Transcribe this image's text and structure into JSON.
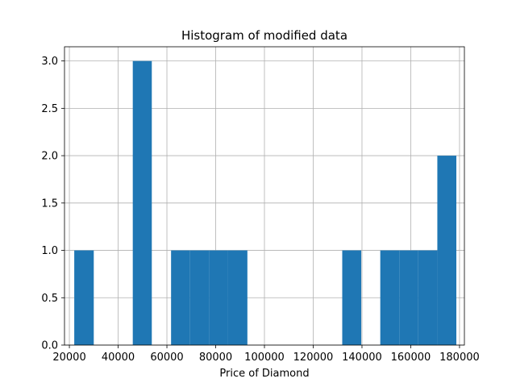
{
  "chart_data": {
    "type": "bar",
    "subtype": "histogram",
    "title": "Histogram of modified data",
    "xlabel": "Price of Diamond",
    "ylabel": "",
    "xlim": [
      18000,
      182000
    ],
    "ylim": [
      0,
      3.15
    ],
    "grid": true,
    "bar_color": "#1f77b4",
    "x_ticks": [
      20000,
      40000,
      60000,
      80000,
      100000,
      120000,
      140000,
      160000,
      180000
    ],
    "x_tick_labels": [
      "20000",
      "40000",
      "60000",
      "80000",
      "100000",
      "120000",
      "140000",
      "160000",
      "180000"
    ],
    "y_ticks": [
      0,
      0.5,
      1.0,
      1.5,
      2.0,
      2.5,
      3.0
    ],
    "y_tick_labels": [
      "0.0",
      "0.5",
      "1.0",
      "1.5",
      "2.0",
      "2.5",
      "3.0"
    ],
    "bins": [
      {
        "start": 22000,
        "end": 30000,
        "count": 1
      },
      {
        "start": 46000,
        "end": 53800,
        "count": 3
      },
      {
        "start": 61700,
        "end": 69500,
        "count": 1
      },
      {
        "start": 69500,
        "end": 77300,
        "count": 1
      },
      {
        "start": 77300,
        "end": 85100,
        "count": 1
      },
      {
        "start": 85100,
        "end": 93000,
        "count": 1
      },
      {
        "start": 131900,
        "end": 139700,
        "count": 1
      },
      {
        "start": 147500,
        "end": 155300,
        "count": 1
      },
      {
        "start": 155300,
        "end": 163100,
        "count": 1
      },
      {
        "start": 163100,
        "end": 170900,
        "count": 1
      },
      {
        "start": 170900,
        "end": 178700,
        "count": 2
      }
    ]
  }
}
